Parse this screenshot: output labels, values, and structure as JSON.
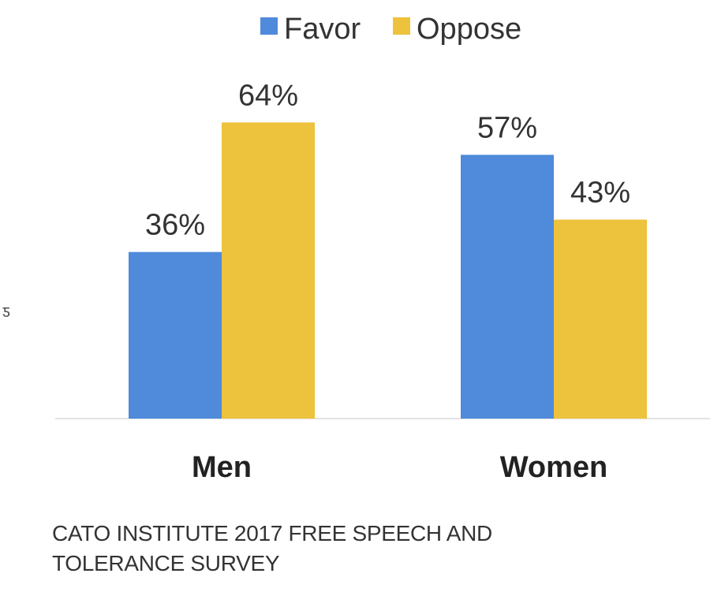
{
  "chart_data": {
    "type": "bar",
    "title": "",
    "xlabel": "",
    "ylabel": "",
    "ylim": [
      0,
      70
    ],
    "grid": false,
    "legend_position": "top",
    "categories": [
      "Men",
      "Women"
    ],
    "series": [
      {
        "name": "Favor",
        "color": "#4F8ADB",
        "values": [
          36,
          57
        ],
        "labels": [
          "36%",
          "57%"
        ]
      },
      {
        "name": "Oppose",
        "color": "#EDC23C",
        "values": [
          64,
          43
        ],
        "labels": [
          "64%",
          "43%"
        ]
      }
    ]
  },
  "source": "CATO INSTITUTE 2017 FREE SPEECH AND TOLERANCE SURVEY",
  "edge_fragment": "ƽ"
}
